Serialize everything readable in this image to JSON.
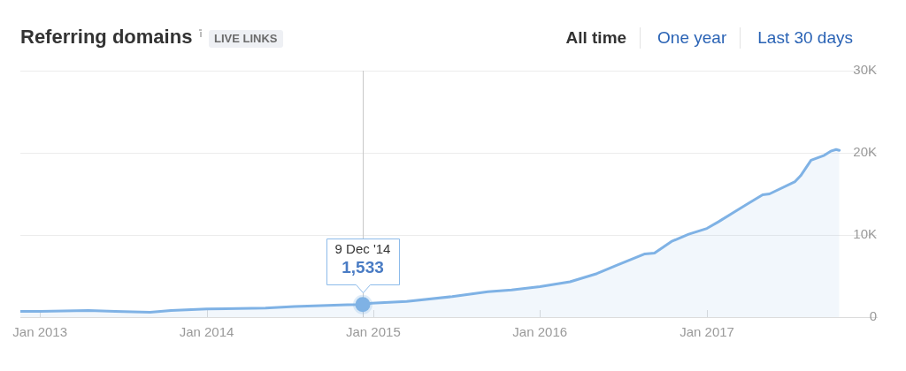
{
  "chart_data": {
    "type": "area",
    "title": "Referring domains",
    "annotations": [
      "LIVE LINKS",
      "All time",
      "One year",
      "Last 30 days",
      {
        "text": "9 Dec '14",
        "x": "2014-12-09"
      }
    ],
    "x": [
      "2012-11-19",
      "2013-01-01",
      "2013-04-17",
      "2013-06-15",
      "2013-08-30",
      "2013-10-15",
      "2014-01-01",
      "2014-05-10",
      "2014-07-12",
      "2014-11-05",
      "2014-12-09",
      "2014-12-28",
      "2015-03-15",
      "2015-06-23",
      "2015-08-01",
      "2015-09-09",
      "2015-10-31",
      "2016-01-01",
      "2016-03-07",
      "2016-05-05",
      "2016-06-17",
      "2016-08-18",
      "2016-09-08",
      "2016-10-15",
      "2016-11-22",
      "2017-01-01",
      "2017-01-26",
      "2017-03-05",
      "2017-03-31",
      "2017-05-03",
      "2017-05-18",
      "2017-07-13",
      "2017-07-25",
      "2017-08-17",
      "2017-09-15",
      "2017-09-29",
      "2017-10-11",
      "2017-10-18"
    ],
    "series": [
      {
        "color": "#7fb2e5",
        "values": [
          700,
          700,
          800,
          700,
          600,
          800,
          1000,
          1100,
          1300,
          1500,
          1533,
          1700,
          1900,
          2500,
          2800,
          3100,
          3300,
          3700,
          4300,
          5300,
          6300,
          7700,
          7800,
          9200,
          10100,
          10800,
          11600,
          12900,
          13800,
          14900,
          15000,
          16500,
          17200,
          19100,
          19700,
          20200,
          20400,
          20300
        ],
        "value_labels": [
          null,
          null,
          null,
          null,
          null,
          null,
          null,
          null,
          null,
          null,
          "1,533",
          null,
          null,
          null,
          null,
          null,
          null,
          null,
          null,
          null,
          null,
          null,
          null,
          null,
          null,
          null,
          null,
          null,
          null,
          null,
          null,
          null,
          null,
          null,
          null,
          null,
          null,
          null
        ]
      }
    ],
    "xlim": [
      "2012-11-19",
      "2018-01-08"
    ],
    "xticks": [
      {
        "value": "2013-01-01",
        "label": "Jan 2013"
      },
      {
        "value": "2014-01-01",
        "label": "Jan 2014"
      },
      {
        "value": "2015-01-01",
        "label": "Jan 2015"
      },
      {
        "value": "2016-01-01",
        "label": "Jan 2016"
      },
      {
        "value": "2017-01-01",
        "label": "Jan 2017"
      }
    ],
    "ylim": [
      0,
      30000
    ],
    "yticks": [
      0,
      {
        "value": 10000,
        "label": "10K"
      },
      {
        "value": 20000,
        "label": "20K"
      },
      {
        "value": 30000,
        "label": "30K"
      }
    ],
    "grid": "y",
    "ref_lines": [
      {
        "axis": "x",
        "value": "2014-12-09",
        "color": "#c8c8c8"
      }
    ]
  }
}
